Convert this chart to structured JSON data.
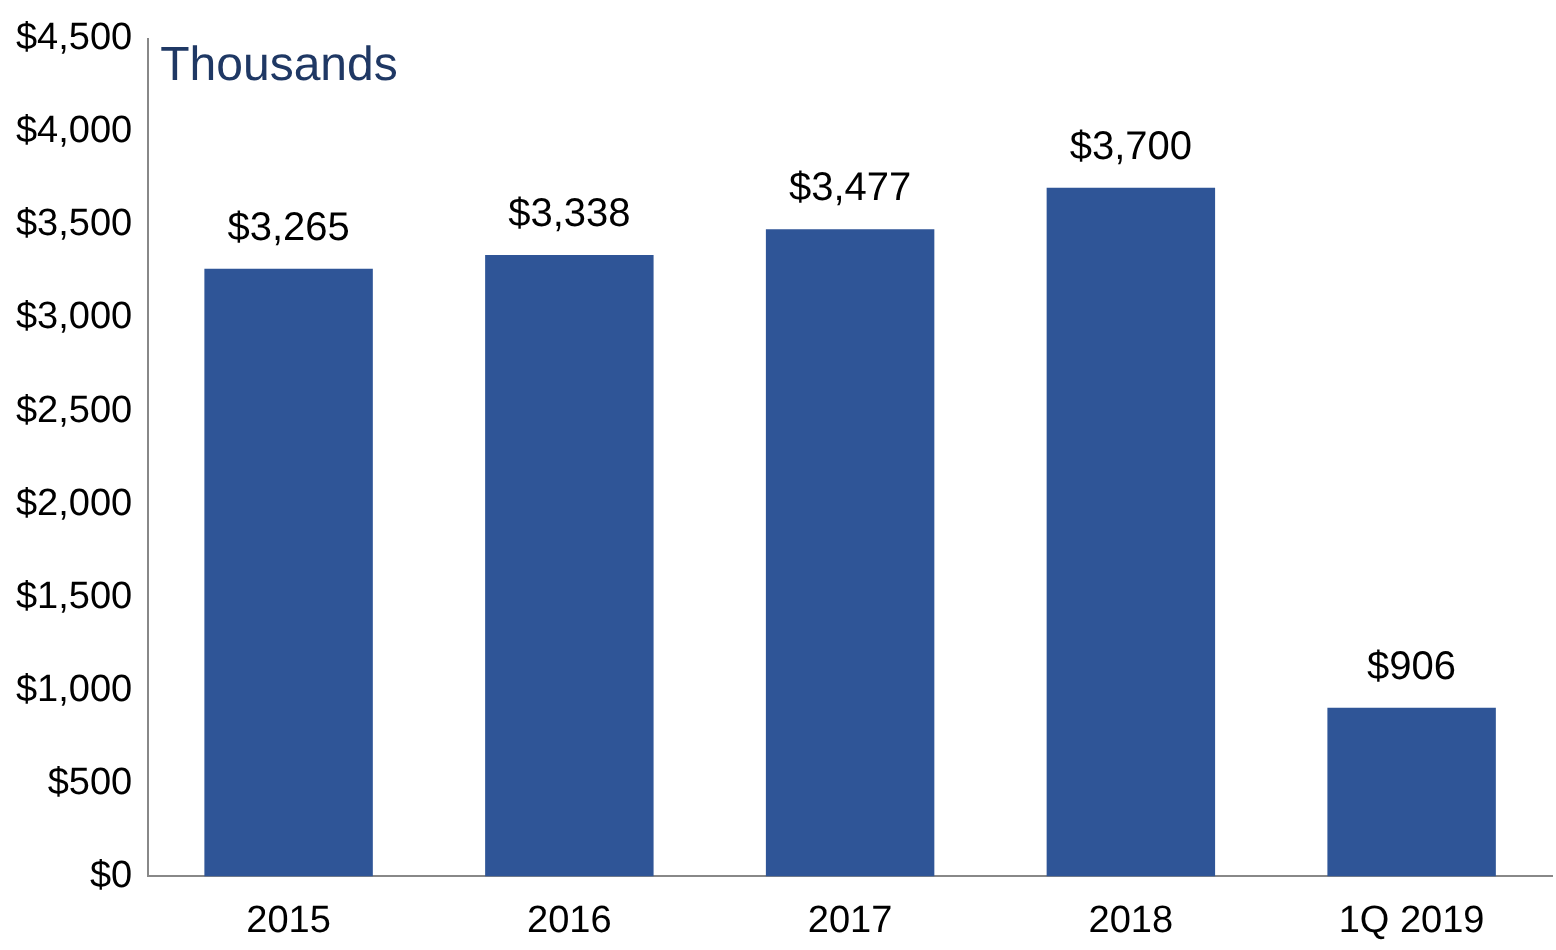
{
  "chart_data": {
    "type": "bar",
    "categories": [
      "2015",
      "2016",
      "2017",
      "2018",
      "1Q 2019"
    ],
    "values": [
      3265,
      3338,
      3477,
      3700,
      906
    ],
    "value_labels": [
      "$3,265",
      "$3,338",
      "$3,477",
      "$3,700",
      "$906"
    ],
    "color": "#2f5597",
    "ylim": [
      0,
      4500
    ],
    "yticks": [
      {
        "value": 0,
        "label": "$0"
      },
      {
        "value": 500,
        "label": "$500"
      },
      {
        "value": 1000,
        "label": "$1,000"
      },
      {
        "value": 1500,
        "label": "$1,500"
      },
      {
        "value": 2000,
        "label": "$2,000"
      },
      {
        "value": 2500,
        "label": "$2,500"
      },
      {
        "value": 3000,
        "label": "$3,000"
      },
      {
        "value": 3500,
        "label": "$3,500"
      },
      {
        "value": 4000,
        "label": "$4,000"
      },
      {
        "value": 4500,
        "label": "$4,500"
      }
    ],
    "annotations": [
      "Thousands"
    ],
    "grid": false,
    "legend": false
  }
}
